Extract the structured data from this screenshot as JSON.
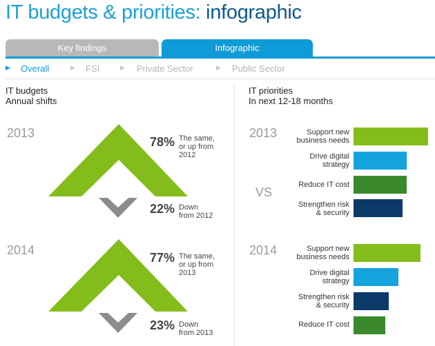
{
  "title": {
    "main": "IT budgets & priorities:",
    "sub": "infographic"
  },
  "tabs": [
    {
      "label": "Key findings",
      "active": false
    },
    {
      "label": "Infographic",
      "active": true
    }
  ],
  "subnav": [
    {
      "label": "Overall",
      "active": true
    },
    {
      "label": "FSI",
      "active": false
    },
    {
      "label": "Private Sector",
      "active": false
    },
    {
      "label": "Public Sector",
      "active": false
    }
  ],
  "budgets": {
    "title": "IT budgets",
    "subtitle": "Annual shifts",
    "years": [
      {
        "year": "2013",
        "up_pct": "78%",
        "up_label_1": "The same,",
        "up_label_2": "or up from",
        "up_label_3": "2012",
        "down_pct": "22%",
        "down_label_1": "Down",
        "down_label_2": "from 2012"
      },
      {
        "year": "2014",
        "up_pct": "77%",
        "up_label_1": "The same,",
        "up_label_2": "or up from",
        "up_label_3": "2013",
        "down_pct": "23%",
        "down_label_1": "Down",
        "down_label_2": "from 2013"
      }
    ]
  },
  "priorities": {
    "title": "IT priorities",
    "subtitle": "In next 12-18 months",
    "vs": "VS",
    "max_value": 100,
    "groups": [
      {
        "year": "2013",
        "items": [
          {
            "l1": "Support new",
            "l2": "business needs",
            "value": 100,
            "color": "#84bd1b"
          },
          {
            "l1": "Drive digital",
            "l2": "strategy",
            "value": 71,
            "color": "#14a3dc"
          },
          {
            "l1": "Reduce IT cost",
            "l2": "",
            "value": 71,
            "color": "#3a8a2b"
          },
          {
            "l1": "Strengthen risk",
            "l2": "& security",
            "value": 66,
            "color": "#0b3a69"
          }
        ]
      },
      {
        "year": "2014",
        "items": [
          {
            "l1": "Support new",
            "l2": "business needs",
            "value": 90,
            "color": "#84bd1b"
          },
          {
            "l1": "Drive digital",
            "l2": "strategy",
            "value": 60,
            "color": "#14a3dc"
          },
          {
            "l1": "Strengthen risk",
            "l2": "& security",
            "value": 47,
            "color": "#0b3a69"
          },
          {
            "l1": "Reduce IT cost",
            "l2": "",
            "value": 43,
            "color": "#3a8a2b"
          }
        ]
      }
    ]
  },
  "colors": {
    "accent": "#0f9bd7",
    "green": "#84bd1b",
    "gray_chevron": "#8c8c8c",
    "tab_inactive": "#b8b8b8"
  }
}
